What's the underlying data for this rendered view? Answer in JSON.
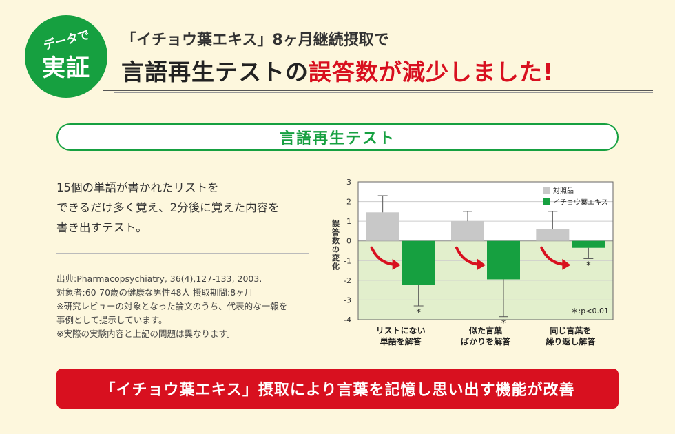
{
  "header": {
    "badge_line1": "データで",
    "badge_line2": "実証",
    "subtitle": "「イチョウ葉エキス」8ヶ月継続摂取で",
    "title_part1": "言語再生テストの",
    "title_part2": "誤答数が減少しました!"
  },
  "section": {
    "label": "言語再生テスト"
  },
  "description": {
    "line1": "15個の単語が書かれたリストを",
    "line2": "できるだけ多く覚え、2分後に覚えた内容を",
    "line3": "書き出すテスト。"
  },
  "notes": {
    "source": "出典:Pharmacopsychiatry, 36(4),127-133, 2003.",
    "subjects": "対象者:60-70歳の健康な男性48人 摂取期間:8ヶ月",
    "note1a": "※研究レビューの対象となった論文のうち、代表的な一報を",
    "note1b": "事例として提示しています。",
    "note2": "※実際の実験内容と上記の問題は異なります。"
  },
  "chart_data": {
    "type": "bar",
    "ylabel": "誤答数の変化",
    "ylim": [
      -4,
      3
    ],
    "yticks": [
      "3",
      "2",
      "1",
      "0",
      "-1",
      "-2",
      "-3",
      "-4"
    ],
    "categories": [
      [
        "リストにない",
        "単語を解答"
      ],
      [
        "似た言葉",
        "ばかりを解答"
      ],
      [
        "同じ言葉を",
        "繰り返し解答"
      ]
    ],
    "series": [
      {
        "name": "対照品",
        "color": "#c8c8c8",
        "values": [
          1.45,
          1.0,
          0.6
        ],
        "err": [
          0.85,
          0.5,
          0.9
        ]
      },
      {
        "name": "イチョウ葉エキス",
        "color": "#16a040",
        "values": [
          -2.25,
          -1.95,
          -0.35
        ],
        "err": [
          1.05,
          1.9,
          0.55
        ]
      }
    ],
    "significance_marks": [
      "*",
      "*",
      "*"
    ],
    "significance_note": "＊:p<0.01",
    "legend_position": "top-right",
    "negative_region_color": "#e2efcc",
    "arrow_color": "#d8101f"
  },
  "banner": {
    "text": "「イチョウ葉エキス」摂取により言葉を記憶し思い出す機能が改善"
  }
}
